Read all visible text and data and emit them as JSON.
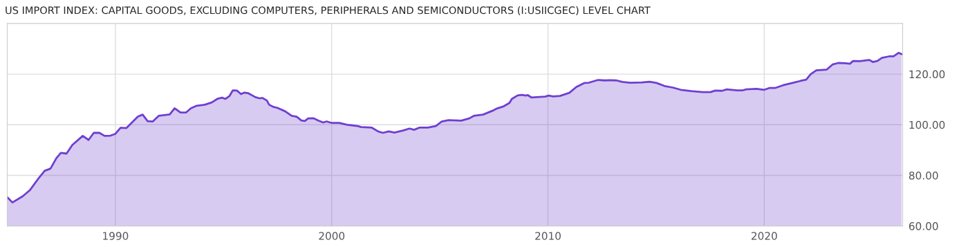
{
  "chart_data": {
    "type": "area",
    "title": "US IMPORT INDEX: CAPITAL GOODS, EXCLUDING COMPUTERS, PERIPHERALS AND SEMICONDUCTORS (I:USIICGEC) LEVEL CHART",
    "xlim": [
      1985,
      2026.4
    ],
    "xticks": [
      1990,
      2000,
      2010,
      2020
    ],
    "ylim": [
      60,
      140
    ],
    "yticks": [
      {
        "value": 60,
        "label": "60.00"
      },
      {
        "value": 80,
        "label": "80.00"
      },
      {
        "value": 100,
        "label": "100.00"
      },
      {
        "value": 120,
        "label": "120.00"
      }
    ],
    "grid": true,
    "series": [
      {
        "color": "#6e3fd0",
        "x": [
          1985.0,
          1985.24,
          1985.72,
          1986.04,
          1986.47,
          1986.73,
          1987.0,
          1987.27,
          1987.48,
          1987.74,
          1988.01,
          1988.49,
          1988.76,
          1989.0,
          1989.26,
          1989.5,
          1989.77,
          1990.0,
          1990.24,
          1990.51,
          1991.04,
          1991.26,
          1991.49,
          1991.73,
          1992.0,
          1992.51,
          1992.74,
          1993.01,
          1993.26,
          1993.49,
          1993.76,
          1994.13,
          1994.45,
          1994.71,
          1994.93,
          1995.09,
          1995.28,
          1995.43,
          1995.62,
          1995.81,
          1995.96,
          1996.13,
          1996.47,
          1996.68,
          1996.79,
          1997.0,
          1997.11,
          1997.32,
          1997.48,
          1997.85,
          1998.15,
          1998.38,
          1998.6,
          1998.76,
          1998.91,
          1999.15,
          1999.4,
          1999.61,
          1999.77,
          2000.0,
          2000.35,
          2000.72,
          2001.2,
          2001.36,
          2001.84,
          2002.16,
          2002.37,
          2002.64,
          2002.9,
          2003.33,
          2003.6,
          2003.81,
          2004.07,
          2004.45,
          2004.82,
          2005.09,
          2005.4,
          2005.99,
          2006.36,
          2006.57,
          2007.0,
          2007.43,
          2007.64,
          2007.96,
          2008.22,
          2008.33,
          2008.6,
          2008.81,
          2008.97,
          2009.07,
          2009.23,
          2009.87,
          2010.03,
          2010.24,
          2010.56,
          2010.99,
          2011.31,
          2011.68,
          2011.89,
          2012.32,
          2012.64,
          2012.85,
          2013.17,
          2013.44,
          2013.81,
          2014.34,
          2014.7,
          2015.02,
          2015.39,
          2015.77,
          2016.14,
          2016.62,
          2017.15,
          2017.52,
          2017.73,
          2018.05,
          2018.27,
          2018.74,
          2019.01,
          2019.17,
          2019.65,
          2020.0,
          2020.23,
          2020.5,
          2020.87,
          2021.4,
          2021.67,
          2021.94,
          2022.15,
          2022.41,
          2022.89,
          2023.16,
          2023.43,
          2023.74,
          2023.96,
          2024.11,
          2024.43,
          2024.86,
          2025.02,
          2025.23,
          2025.44,
          2025.77,
          2025.98,
          2026.21,
          2026.35
        ],
        "values": [
          71.4,
          69.3,
          71.8,
          74.1,
          79.1,
          81.8,
          82.7,
          86.8,
          88.9,
          88.6,
          92.0,
          95.6,
          94.0,
          96.8,
          96.8,
          95.6,
          95.7,
          96.4,
          98.8,
          98.7,
          103.2,
          104.0,
          101.4,
          101.3,
          103.5,
          104.1,
          106.5,
          104.8,
          104.8,
          106.5,
          107.5,
          107.9,
          108.8,
          110.2,
          110.7,
          110.2,
          111.4,
          113.6,
          113.5,
          112.1,
          112.7,
          112.5,
          110.9,
          110.4,
          110.6,
          109.6,
          107.9,
          107.0,
          106.7,
          105.3,
          103.5,
          103.2,
          101.7,
          101.5,
          102.5,
          102.6,
          101.6,
          100.9,
          101.3,
          100.7,
          100.7,
          100.0,
          99.5,
          99.1,
          98.9,
          97.3,
          96.8,
          97.4,
          96.9,
          97.8,
          98.5,
          98.0,
          98.9,
          98.9,
          99.5,
          101.3,
          101.8,
          101.6,
          102.5,
          103.5,
          104.0,
          105.5,
          106.4,
          107.3,
          108.6,
          110.2,
          111.6,
          111.8,
          111.5,
          111.7,
          110.8,
          111.1,
          111.5,
          111.2,
          111.4,
          112.6,
          114.9,
          116.5,
          116.6,
          117.7,
          117.5,
          117.6,
          117.5,
          116.9,
          116.6,
          116.7,
          117.0,
          116.5,
          115.3,
          114.7,
          113.8,
          113.3,
          112.9,
          112.9,
          113.5,
          113.4,
          114.0,
          113.6,
          113.6,
          114.0,
          114.2,
          113.8,
          114.5,
          114.5,
          115.6,
          116.7,
          117.3,
          117.8,
          120.0,
          121.5,
          121.8,
          123.8,
          124.4,
          124.3,
          124.1,
          125.2,
          125.1,
          125.6,
          124.8,
          125.2,
          126.4,
          127.0,
          127.0,
          128.4,
          127.9
        ]
      }
    ]
  }
}
